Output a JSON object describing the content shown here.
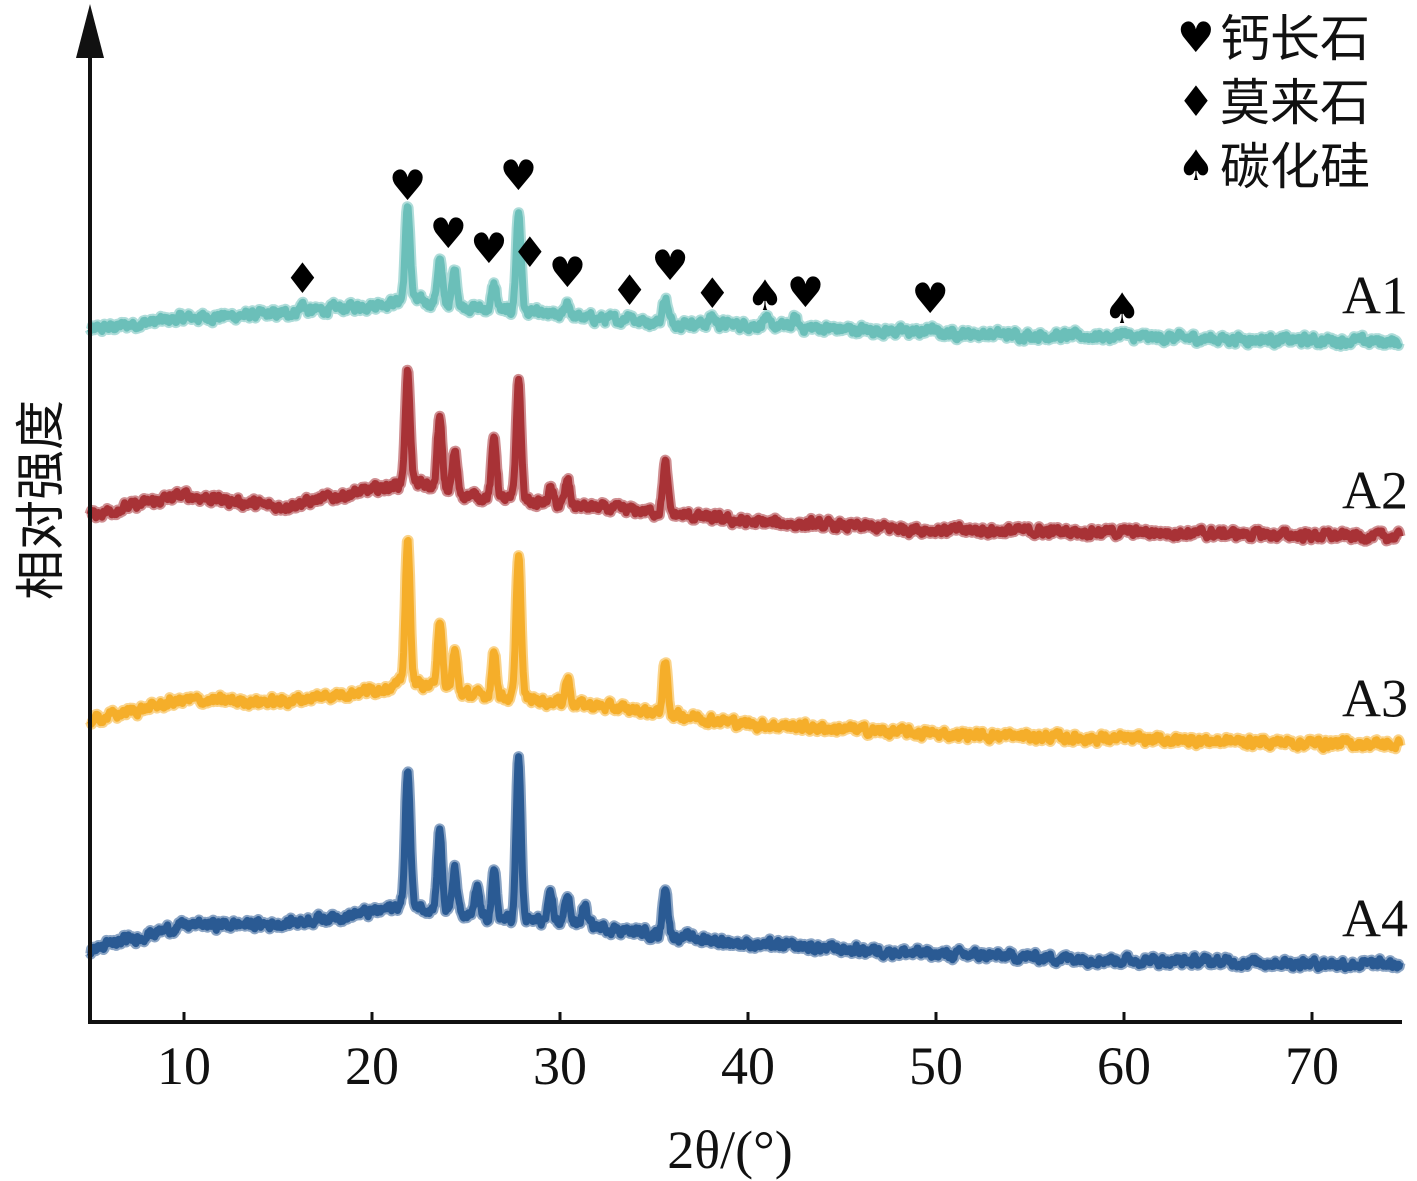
{
  "chart_data": {
    "type": "line",
    "title": "",
    "xlabel": "2θ/(°)",
    "ylabel": "相对强度",
    "xlim": [
      5,
      75
    ],
    "ylim": [
      0,
      1000
    ],
    "xticks": [
      10,
      20,
      30,
      40,
      50,
      60,
      70
    ],
    "yticks": [],
    "grid": false,
    "legend_placement": "top-right",
    "legend": [
      {
        "symbol": "heart",
        "glyph": "♥",
        "label": "钙长石"
      },
      {
        "symbol": "diamond",
        "glyph": "♦",
        "label": "莫来石"
      },
      {
        "symbol": "spade",
        "glyph": "♠",
        "label": "碳化硅"
      }
    ],
    "series": [
      {
        "name": "A1",
        "color": "#6bbfb9",
        "baseline": [
          [
            5,
            692
          ],
          [
            10,
            704
          ],
          [
            15,
            708
          ],
          [
            20,
            717
          ],
          [
            22,
            722
          ],
          [
            25,
            715
          ],
          [
            30,
            706
          ],
          [
            35,
            700
          ],
          [
            40,
            697
          ],
          [
            50,
            689
          ],
          [
            60,
            685
          ],
          [
            75,
            680
          ]
        ],
        "peaks": [
          [
            16.3,
            8
          ],
          [
            21.9,
            93
          ],
          [
            23.6,
            45
          ],
          [
            24.4,
            35
          ],
          [
            26.5,
            25
          ],
          [
            27.8,
            100
          ],
          [
            30.4,
            15
          ],
          [
            33.7,
            8
          ],
          [
            35.6,
            25
          ],
          [
            38.1,
            8
          ],
          [
            40.9,
            7
          ],
          [
            42.5,
            8
          ],
          [
            49.7,
            5
          ],
          [
            59.9,
            5
          ]
        ]
      },
      {
        "name": "A2",
        "color": "#a83236",
        "baseline": [
          [
            5,
            507
          ],
          [
            10,
            527
          ],
          [
            15,
            515
          ],
          [
            20,
            532
          ],
          [
            22,
            540
          ],
          [
            25,
            527
          ],
          [
            30,
            517
          ],
          [
            35,
            510
          ],
          [
            40,
            500
          ],
          [
            50,
            492
          ],
          [
            60,
            490
          ],
          [
            75,
            485
          ]
        ],
        "peaks": [
          [
            21.9,
            110
          ],
          [
            23.6,
            70
          ],
          [
            24.4,
            40
          ],
          [
            26.5,
            60
          ],
          [
            27.8,
            120
          ],
          [
            29.5,
            15
          ],
          [
            30.4,
            25
          ],
          [
            35.6,
            50
          ]
        ]
      },
      {
        "name": "A3",
        "color": "#f5ae2a",
        "baseline": [
          [
            5,
            302
          ],
          [
            10,
            322
          ],
          [
            15,
            320
          ],
          [
            20,
            332
          ],
          [
            22,
            340
          ],
          [
            25,
            328
          ],
          [
            30,
            320
          ],
          [
            35,
            310
          ],
          [
            40,
            298
          ],
          [
            50,
            288
          ],
          [
            60,
            283
          ],
          [
            75,
            277
          ]
        ],
        "peaks": [
          [
            21.9,
            140
          ],
          [
            23.6,
            70
          ],
          [
            24.4,
            40
          ],
          [
            26.5,
            45
          ],
          [
            27.8,
            145
          ],
          [
            30.4,
            25
          ],
          [
            35.6,
            50
          ]
        ]
      },
      {
        "name": "A4",
        "color": "#2a5a93",
        "baseline": [
          [
            5,
            72
          ],
          [
            10,
            97
          ],
          [
            15,
            98
          ],
          [
            20,
            110
          ],
          [
            22,
            118
          ],
          [
            25,
            105
          ],
          [
            30,
            100
          ],
          [
            35,
            88
          ],
          [
            40,
            78
          ],
          [
            50,
            68
          ],
          [
            60,
            62
          ],
          [
            75,
            57
          ]
        ],
        "peaks": [
          [
            21.9,
            135
          ],
          [
            23.6,
            80
          ],
          [
            24.4,
            45
          ],
          [
            25.6,
            30
          ],
          [
            26.5,
            45
          ],
          [
            27.8,
            160
          ],
          [
            29.5,
            25
          ],
          [
            30.4,
            30
          ],
          [
            31.3,
            20
          ],
          [
            35.6,
            50
          ]
        ]
      }
    ],
    "markers": [
      {
        "symbol": "diamond",
        "x": 16.3,
        "y": 744
      },
      {
        "symbol": "heart",
        "x": 21.9,
        "y": 837
      },
      {
        "symbol": "heart",
        "x": 23.6,
        "y": 789
      },
      {
        "symbol": "heart",
        "x": 24.4,
        "y": 774
      },
      {
        "symbol": "diamond",
        "x": 26.5,
        "y": 770
      },
      {
        "symbol": "heart",
        "x": 27.8,
        "y": 847
      },
      {
        "symbol": "heart",
        "x": 30.4,
        "y": 750
      },
      {
        "symbol": "diamond",
        "x": 33.7,
        "y": 732
      },
      {
        "symbol": "heart",
        "x": 35.6,
        "y": 757
      },
      {
        "symbol": "diamond",
        "x": 38.1,
        "y": 729
      },
      {
        "symbol": "spade",
        "x": 40.9,
        "y": 727
      },
      {
        "symbol": "heart",
        "x": 42.5,
        "y": 730
      },
      {
        "symbol": "heart",
        "x": 49.7,
        "y": 724
      },
      {
        "symbol": "spade",
        "x": 59.9,
        "y": 714
      }
    ]
  }
}
